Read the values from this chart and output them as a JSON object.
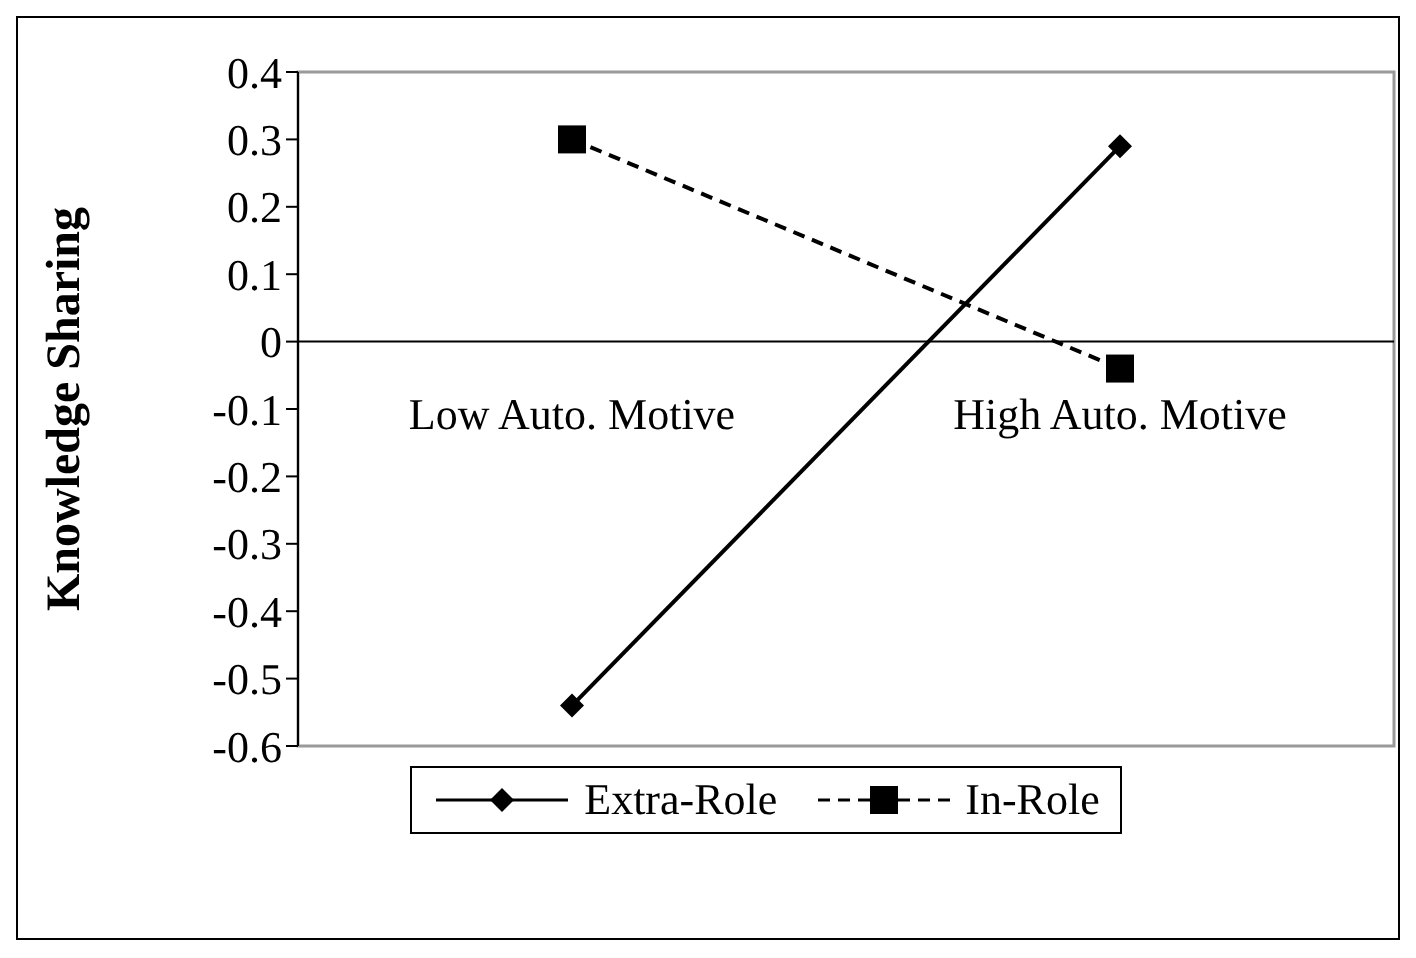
{
  "chart_data": {
    "type": "line",
    "ylabel": "Knowledge Sharing",
    "categories": [
      "Low Auto. Motive",
      "High Auto. Motive"
    ],
    "series": [
      {
        "name": "Extra-Role",
        "color": "#000000",
        "values": [
          -0.54,
          0.29
        ],
        "marker": "diamond",
        "line_style": "solid"
      },
      {
        "name": "In-Role",
        "color": "#000000",
        "values": [
          0.3,
          -0.04
        ],
        "marker": "square",
        "line_style": "dashed"
      }
    ],
    "ylim": [
      -0.6,
      0.4
    ],
    "yticks": [
      {
        "value": -0.6,
        "label": "-0.6"
      },
      {
        "value": -0.5,
        "label": "-0.5"
      },
      {
        "value": -0.4,
        "label": "-0.4"
      },
      {
        "value": -0.3,
        "label": "-0.3"
      },
      {
        "value": -0.2,
        "label": "-0.2"
      },
      {
        "value": -0.1,
        "label": "-0.1"
      },
      {
        "value": 0,
        "label": "0"
      },
      {
        "value": 0.1,
        "label": "0.1"
      },
      {
        "value": 0.2,
        "label": "0.2"
      },
      {
        "value": 0.3,
        "label": "0.3"
      },
      {
        "value": 0.4,
        "label": "0.4"
      }
    ],
    "grid": false,
    "legend": "bottom"
  }
}
